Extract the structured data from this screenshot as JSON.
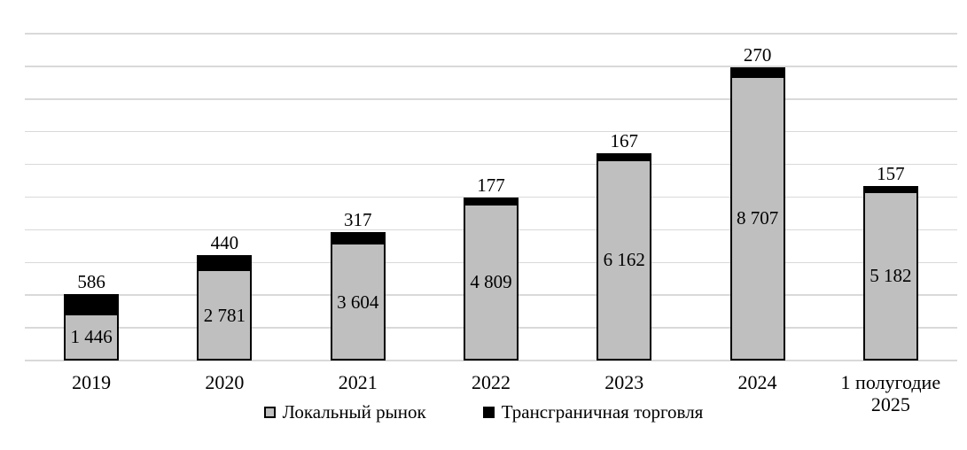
{
  "chart_data": {
    "type": "bar",
    "stacked": true,
    "title": "",
    "xlabel": "",
    "ylabel": "",
    "categories": [
      "2019",
      "2020",
      "2021",
      "2022",
      "2023",
      "2024",
      "1 полугодие 2025"
    ],
    "series": [
      {
        "name": "Локальный рынок",
        "color": "#bfbfbf",
        "values": [
          1446,
          2781,
          3604,
          4809,
          6162,
          8707,
          5182
        ],
        "labels": [
          "1 446",
          "2 781",
          "3 604",
          "4 809",
          "6 162",
          "8 707",
          "5 182"
        ],
        "label_position": "inside-center"
      },
      {
        "name": "Трансграничная торговля",
        "color": "#000000",
        "values": [
          586,
          440,
          317,
          177,
          167,
          270,
          157
        ],
        "labels": [
          "586",
          "440",
          "317",
          "177",
          "167",
          "270",
          "157"
        ],
        "label_position": "outside-end"
      }
    ],
    "ylim": [
      0,
      10000
    ],
    "gridline_step": 1000,
    "grid": true,
    "gridline_color": "#d9d9d9",
    "legend_position": "bottom"
  }
}
